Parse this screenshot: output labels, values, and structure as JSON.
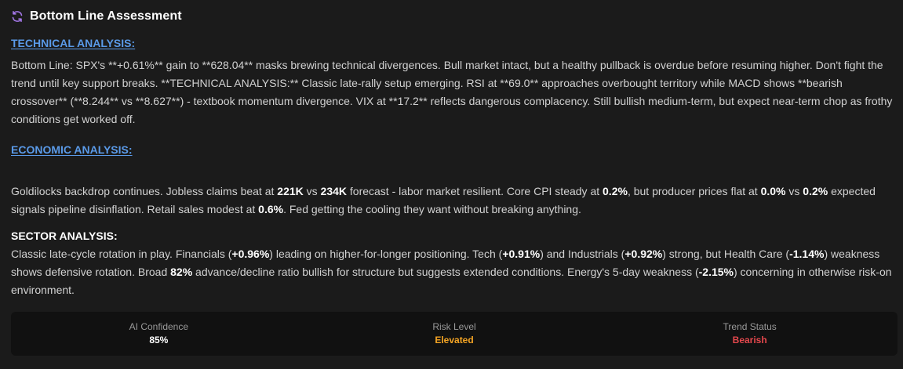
{
  "header": {
    "title": "Bottom Line Assessment",
    "icon": "refresh-icon",
    "icon_color": "#a477e8"
  },
  "technical": {
    "heading": "TECHNICAL ANALYSIS:",
    "text": "Bottom Line: SPX's **+0.61%** gain to **628.04** masks brewing technical divergences. Bull market intact, but a healthy pullback is overdue before resuming higher. Don't fight the trend until key support breaks. **TECHNICAL ANALYSIS:** Classic late-rally setup emerging. RSI at **69.0** approaches overbought territory while MACD shows **bearish crossover** (**8.244** vs **8.627**) - textbook momentum divergence. VIX at **17.2** reflects dangerous complacency. Still bullish medium-term, but expect near-term chop as frothy conditions get worked off."
  },
  "economic": {
    "heading": "ECONOMIC ANALYSIS:",
    "segments": [
      {
        "t": "Goldilocks backdrop continues. Jobless claims beat at "
      },
      {
        "t": "221K",
        "b": true
      },
      {
        "t": " vs "
      },
      {
        "t": "234K",
        "b": true
      },
      {
        "t": " forecast - labor market resilient. Core CPI steady at "
      },
      {
        "t": "0.2%",
        "b": true
      },
      {
        "t": ", but producer prices flat at "
      },
      {
        "t": "0.0%",
        "b": true
      },
      {
        "t": " vs "
      },
      {
        "t": "0.2%",
        "b": true
      },
      {
        "t": " expected signals pipeline disinflation. Retail sales modest at "
      },
      {
        "t": "0.6%",
        "b": true
      },
      {
        "t": ". Fed getting the cooling they want without breaking anything."
      }
    ]
  },
  "sector": {
    "heading": "SECTOR ANALYSIS:",
    "segments": [
      {
        "t": "Classic late-cycle rotation in play. Financials ("
      },
      {
        "t": "+0.96%",
        "b": true
      },
      {
        "t": ") leading on higher-for-longer positioning. Tech ("
      },
      {
        "t": "+0.91%",
        "b": true
      },
      {
        "t": ") and Industrials ("
      },
      {
        "t": "+0.92%",
        "b": true
      },
      {
        "t": ") strong, but Health Care ("
      },
      {
        "t": "-1.14%",
        "b": true
      },
      {
        "t": ") weakness shows defensive rotation. Broad "
      },
      {
        "t": "82%",
        "b": true
      },
      {
        "t": " advance/decline ratio bullish for structure but suggests extended conditions. Energy's 5-day weakness ("
      },
      {
        "t": "-2.15%",
        "b": true
      },
      {
        "t": ") concerning in otherwise risk-on environment."
      }
    ]
  },
  "stats": [
    {
      "label": "AI Confidence",
      "value": "85%",
      "color": "#ffffff"
    },
    {
      "label": "Risk Level",
      "value": "Elevated",
      "color": "#f5a524"
    },
    {
      "label": "Trend Status",
      "value": "Bearish",
      "color": "#e5484d"
    }
  ]
}
